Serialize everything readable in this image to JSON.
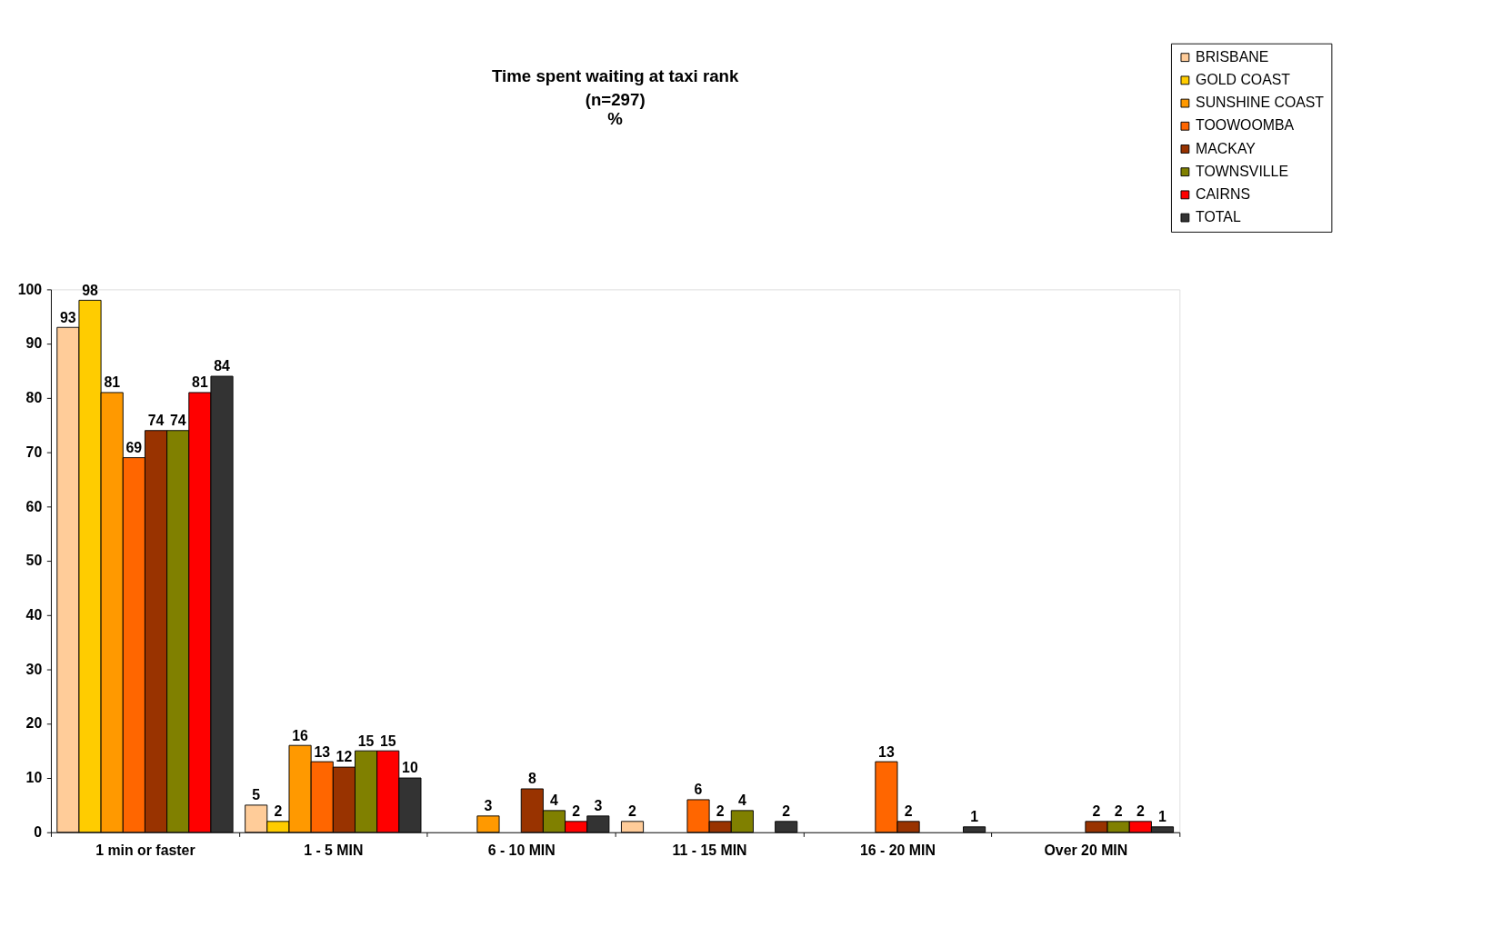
{
  "chart_data": {
    "type": "bar",
    "title": "Time spent waiting at taxi rank",
    "subtitle": "(n=297)",
    "annotations": [
      "%"
    ],
    "categories": [
      "1 min or faster",
      "1 - 5 MIN",
      "6 - 10 MIN",
      "11 - 15 MIN",
      "16 - 20 MIN",
      "Over 20 MIN"
    ],
    "series": [
      {
        "name": "BRISBANE",
        "color": "#ffcc99",
        "values": [
          93,
          5,
          null,
          2,
          null,
          null
        ]
      },
      {
        "name": "GOLD COAST",
        "color": "#ffcc00",
        "values": [
          98,
          2,
          null,
          null,
          null,
          null
        ]
      },
      {
        "name": "SUNSHINE COAST",
        "color": "#ff9900",
        "values": [
          81,
          16,
          3,
          null,
          null,
          null
        ]
      },
      {
        "name": "TOOWOOMBA",
        "color": "#ff6600",
        "values": [
          69,
          13,
          null,
          6,
          13,
          null
        ]
      },
      {
        "name": "MACKAY",
        "color": "#993300",
        "values": [
          74,
          12,
          8,
          2,
          2,
          2
        ]
      },
      {
        "name": "TOWNSVILLE",
        "color": "#808000",
        "values": [
          74,
          15,
          4,
          4,
          null,
          2
        ]
      },
      {
        "name": "CAIRNS",
        "color": "#ff0000",
        "values": [
          81,
          15,
          2,
          null,
          null,
          2
        ]
      },
      {
        "name": "TOTAL",
        "color": "#333333",
        "values": [
          84,
          10,
          3,
          2,
          1,
          1
        ]
      }
    ],
    "ylim": [
      0,
      100
    ],
    "yticks": [
      0,
      10,
      20,
      30,
      40,
      50,
      60,
      70,
      80,
      90,
      100
    ],
    "grid": false,
    "legend": "top right",
    "data_labels": true
  }
}
